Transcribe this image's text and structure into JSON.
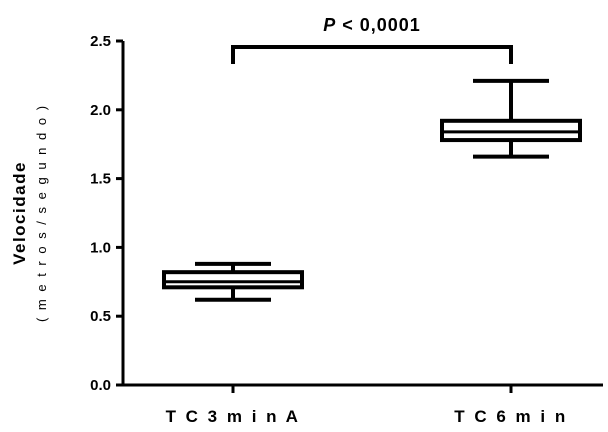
{
  "chart_data": {
    "type": "boxplot",
    "categories": [
      "TC3minA",
      "TC6min"
    ],
    "category_labels": [
      "T C 3 m i n A",
      "T C 6 m i n"
    ],
    "series": [
      {
        "category": "TC3minA",
        "min": 0.62,
        "q1": 0.71,
        "median": 0.75,
        "q3": 0.82,
        "max": 0.88
      },
      {
        "category": "TC6min",
        "min": 1.66,
        "q1": 1.78,
        "median": 1.84,
        "q3": 1.92,
        "max": 2.21
      }
    ],
    "ylabel": "Velocidade",
    "ylabel_sub": "( m e t r o s / s e g u n d o )",
    "ylim": [
      0,
      2.5
    ],
    "yticks": [
      0.0,
      0.5,
      1.0,
      1.5,
      2.0,
      2.5
    ],
    "ytick_labels": [
      "0.0",
      "0.5",
      "1.0",
      "1.5",
      "2.0",
      "2.5"
    ],
    "annotation": {
      "p_symbol": "P",
      "text": " < 0,0001"
    },
    "grid": false
  }
}
